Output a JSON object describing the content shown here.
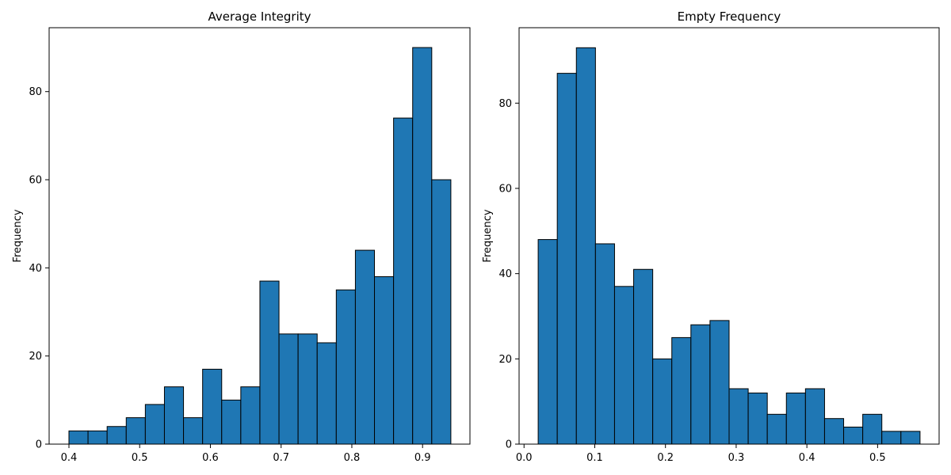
{
  "colors": {
    "bar_fill": "#1f77b4",
    "bar_edge": "#000000",
    "background": "#ffffff"
  },
  "chart_data": [
    {
      "type": "bar",
      "title": "Average Integrity",
      "xlabel": "",
      "ylabel": "Frequency",
      "xlim": [
        0.372,
        0.967
      ],
      "ylim": [
        0,
        94.5
      ],
      "xticks": [
        0.4,
        0.5,
        0.6,
        0.7,
        0.8,
        0.9
      ],
      "xtick_labels": [
        "0.4",
        "0.5",
        "0.6",
        "0.7",
        "0.8",
        "0.9"
      ],
      "yticks": [
        0,
        20,
        40,
        60,
        80
      ],
      "ytick_labels": [
        "0",
        "20",
        "40",
        "60",
        "80"
      ],
      "bin_start": 0.4,
      "bin_width": 0.027,
      "values": [
        3,
        3,
        4,
        6,
        9,
        13,
        6,
        17,
        10,
        13,
        37,
        25,
        25,
        23,
        35,
        44,
        38,
        74,
        90,
        60
      ],
      "grid": false
    },
    {
      "type": "bar",
      "title": "Empty Frequency",
      "xlabel": "",
      "ylabel": "Frequency",
      "xlim": [
        -0.007,
        0.587
      ],
      "ylim": [
        0,
        97.7
      ],
      "xticks": [
        0.0,
        0.1,
        0.2,
        0.3,
        0.4,
        0.5
      ],
      "xtick_labels": [
        "0.0",
        "0.1",
        "0.2",
        "0.3",
        "0.4",
        "0.5"
      ],
      "yticks": [
        0,
        20,
        40,
        60,
        80
      ],
      "ytick_labels": [
        "0",
        "20",
        "40",
        "60",
        "80"
      ],
      "bin_start": 0.02,
      "bin_width": 0.027,
      "values": [
        48,
        87,
        93,
        47,
        37,
        41,
        20,
        25,
        28,
        29,
        13,
        12,
        7,
        12,
        13,
        6,
        4,
        7,
        3,
        3
      ],
      "grid": false
    }
  ]
}
